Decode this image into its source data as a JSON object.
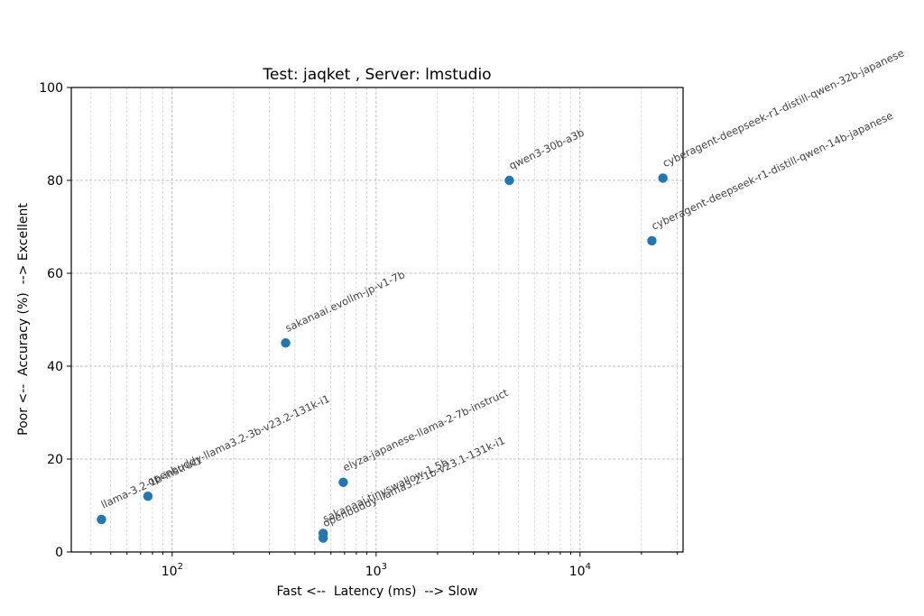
{
  "chart_data": {
    "type": "scatter",
    "title": "Test: jaqket , Server: lmstudio",
    "xlabel": "Fast <--  Latency (ms)  --> Slow",
    "ylabel": "Poor <--  Accuracy (%)  --> Excellent",
    "xscale": "log",
    "xlim": [
      32,
      32000
    ],
    "ylim": [
      0,
      100
    ],
    "grid": true,
    "x_ticks": [
      {
        "base": "10",
        "exp": "2",
        "value": 100
      },
      {
        "base": "10",
        "exp": "3",
        "value": 1000
      },
      {
        "base": "10",
        "exp": "4",
        "value": 10000
      }
    ],
    "y_ticks": [
      "0",
      "20",
      "40",
      "60",
      "80",
      "100"
    ],
    "color": "#1f77b4",
    "points": [
      {
        "label": "llama-3.2-1b-instruct",
        "x": 45,
        "y": 7
      },
      {
        "label": "openbuddy-llama3.2-3b-v23.2-131k-i1",
        "x": 76,
        "y": 12
      },
      {
        "label": "sakanaai.evollm-jp-v1-7b",
        "x": 360,
        "y": 45
      },
      {
        "label": "elyza-japanese-llama-2-7b-instruct",
        "x": 690,
        "y": 15
      },
      {
        "label": "sakanaai.tinyswallow-1.5b",
        "x": 550,
        "y": 4
      },
      {
        "label": "openbuddy-llama3.2-1b-v23.1-131k-i1",
        "x": 550,
        "y": 3
      },
      {
        "label": "qwen3-30b-a3b",
        "x": 4500,
        "y": 80
      },
      {
        "label": "cyberagent-deepseek-r1-distill-qwen-14b-japanese",
        "x": 22500,
        "y": 67
      },
      {
        "label": "cyberagent-deepseek-r1-distill-qwen-32b-japanese",
        "x": 25500,
        "y": 80.5
      }
    ]
  }
}
